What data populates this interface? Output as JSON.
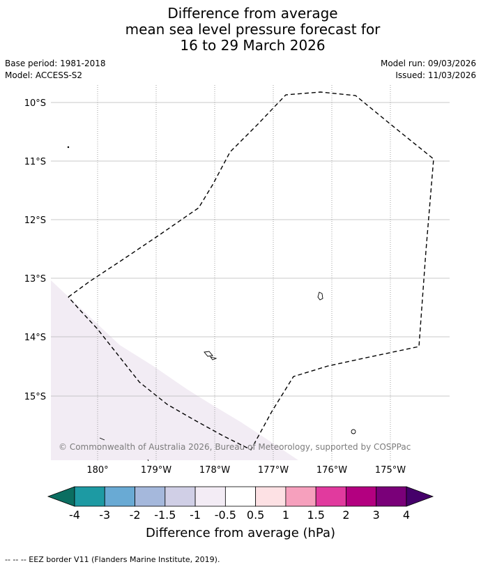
{
  "header": {
    "title_lines": [
      "Difference from average",
      "mean sea level pressure forecast for",
      "16 to 29 March 2026"
    ],
    "base_period": "Base period: 1981-2018",
    "model": "Model: ACCESS-S2",
    "model_run": "Model run: 09/03/2026",
    "issued": "Issued: 11/03/2026"
  },
  "map": {
    "lat_labels": [
      "10°S",
      "11°S",
      "12°S",
      "13°S",
      "14°S",
      "15°S"
    ],
    "lon_labels": [
      "180°",
      "179°W",
      "178°W",
      "177°W",
      "176°W",
      "175°W"
    ],
    "copyright": "© Commonwealth of Australia 2026, Bureau of Meteorology, supported by COSPPac",
    "shaded_category": "-0.5 to -1",
    "shaded_color": "#f2ecf4"
  },
  "colorbar": {
    "tick_labels": [
      "-4",
      "-3",
      "-2",
      "-1.5",
      "-1",
      "-0.5",
      "0.5",
      "1",
      "1.5",
      "2",
      "3",
      "4"
    ],
    "colors": [
      "#0b6e61",
      "#1d9aa3",
      "#69aad4",
      "#a5b8dc",
      "#d0cfe6",
      "#f3ecf5",
      "#ffffff",
      "#fde1e4",
      "#f6a0bd",
      "#e13a9e",
      "#b30080",
      "#7a0079",
      "#45006a"
    ],
    "label": "Difference from average (hPa)"
  },
  "footer": {
    "legend": "--  --  -- EEZ border V11 (Flanders Marine Institute, 2019)."
  }
}
